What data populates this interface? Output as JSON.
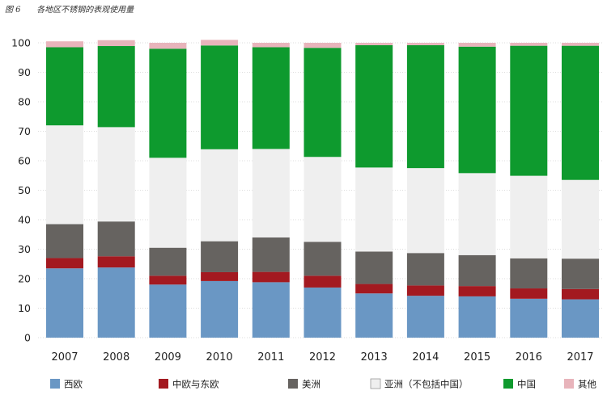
{
  "figure": {
    "number": "图 6",
    "title": "各地区不锈钢的表观使用量"
  },
  "chart_data": {
    "type": "bar",
    "stacked": true,
    "title": "各地区不锈钢的表观使用量",
    "categories": [
      "2007",
      "2008",
      "2009",
      "2010",
      "2011",
      "2012",
      "2013",
      "2014",
      "2015",
      "2016",
      "2017"
    ],
    "ylim": [
      0,
      100
    ],
    "yticks": [
      "0",
      "10",
      "20",
      "30",
      "40",
      "50",
      "60",
      "70",
      "80",
      "90",
      "100"
    ],
    "grid": true,
    "legend_position": "bottom",
    "series": [
      {
        "name": "西欧",
        "color": "#6a97c4",
        "values": [
          23.5,
          23.8,
          18.0,
          19.2,
          18.8,
          17.0,
          15.0,
          14.2,
          14.0,
          13.2,
          13.0
        ]
      },
      {
        "name": "中欧与东欧",
        "color": "#a31920",
        "values": [
          3.5,
          3.8,
          3.0,
          3.0,
          3.5,
          4.0,
          3.2,
          3.5,
          3.5,
          3.5,
          3.5
        ]
      },
      {
        "name": "美洲",
        "color": "#666360",
        "values": [
          11.5,
          11.8,
          9.5,
          10.5,
          11.7,
          11.5,
          11.0,
          11.0,
          10.5,
          10.2,
          10.3
        ]
      },
      {
        "name": "亚洲（不包括中国）",
        "color": "#efefef",
        "values": [
          33.5,
          32.0,
          30.5,
          31.2,
          30.0,
          28.8,
          28.5,
          28.8,
          27.8,
          28.0,
          26.7
        ]
      },
      {
        "name": "中国",
        "color": "#0e9a2e",
        "values": [
          26.5,
          27.5,
          37.0,
          35.2,
          34.5,
          37.0,
          41.5,
          41.7,
          42.9,
          44.1,
          45.5
        ]
      },
      {
        "name": "其他",
        "color": "#e8b4bb",
        "values": [
          2.0,
          2.0,
          2.0,
          1.9,
          1.5,
          1.7,
          0.8,
          0.8,
          1.3,
          1.0,
          1.0
        ]
      }
    ]
  }
}
